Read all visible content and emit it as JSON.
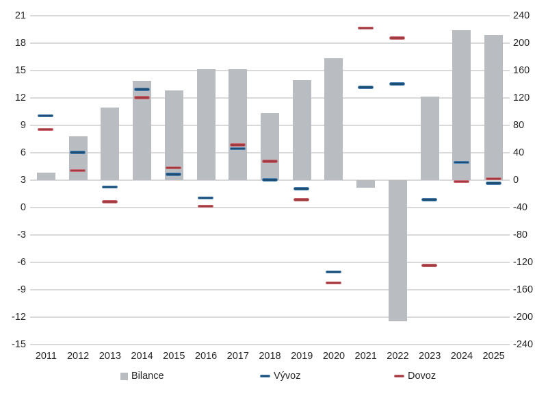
{
  "chart_data": {
    "type": "bar",
    "categories": [
      "2011",
      "2012",
      "2013",
      "2014",
      "2015",
      "2016",
      "2017",
      "2018",
      "2019",
      "2020",
      "2021",
      "2022",
      "2023",
      "2024",
      "2025"
    ],
    "series": [
      {
        "name": "Bilance",
        "type": "bar",
        "axis": "right",
        "color": "#b9bdc2",
        "values": [
          11,
          64,
          106,
          145,
          131,
          162,
          162,
          98,
          146,
          178,
          -11,
          -206,
          122,
          219,
          212
        ]
      },
      {
        "name": "Vývoz",
        "type": "dash",
        "axis": "left",
        "fill_color": "#1d4e74",
        "border_color": "#4d82b4",
        "values": [
          10.0,
          6.0,
          2.2,
          12.9,
          3.6,
          1.0,
          6.4,
          3.0,
          2.0,
          -7.1,
          13.1,
          13.5,
          0.8,
          4.9,
          2.6
        ]
      },
      {
        "name": "Dovoz",
        "type": "dash",
        "axis": "left",
        "fill_color": "#a23a42",
        "border_color": "#c96b70",
        "values": [
          8.5,
          4.0,
          0.6,
          12.0,
          4.3,
          0.1,
          6.8,
          5.0,
          0.8,
          -8.3,
          19.6,
          18.5,
          -6.4,
          2.8,
          3.1
        ]
      }
    ],
    "left_axis": {
      "min": -15,
      "max": 21,
      "step": 3,
      "ticks": [
        21,
        18,
        15,
        12,
        9,
        6,
        3,
        0,
        -3,
        -6,
        -9,
        -12,
        -15
      ]
    },
    "right_axis": {
      "min": -240,
      "max": 240,
      "step": 40,
      "ticks": [
        240,
        200,
        160,
        120,
        80,
        40,
        0,
        -40,
        -80,
        -120,
        -160,
        -200,
        -240
      ]
    },
    "title": "",
    "grid": true,
    "legend_position": "bottom"
  }
}
